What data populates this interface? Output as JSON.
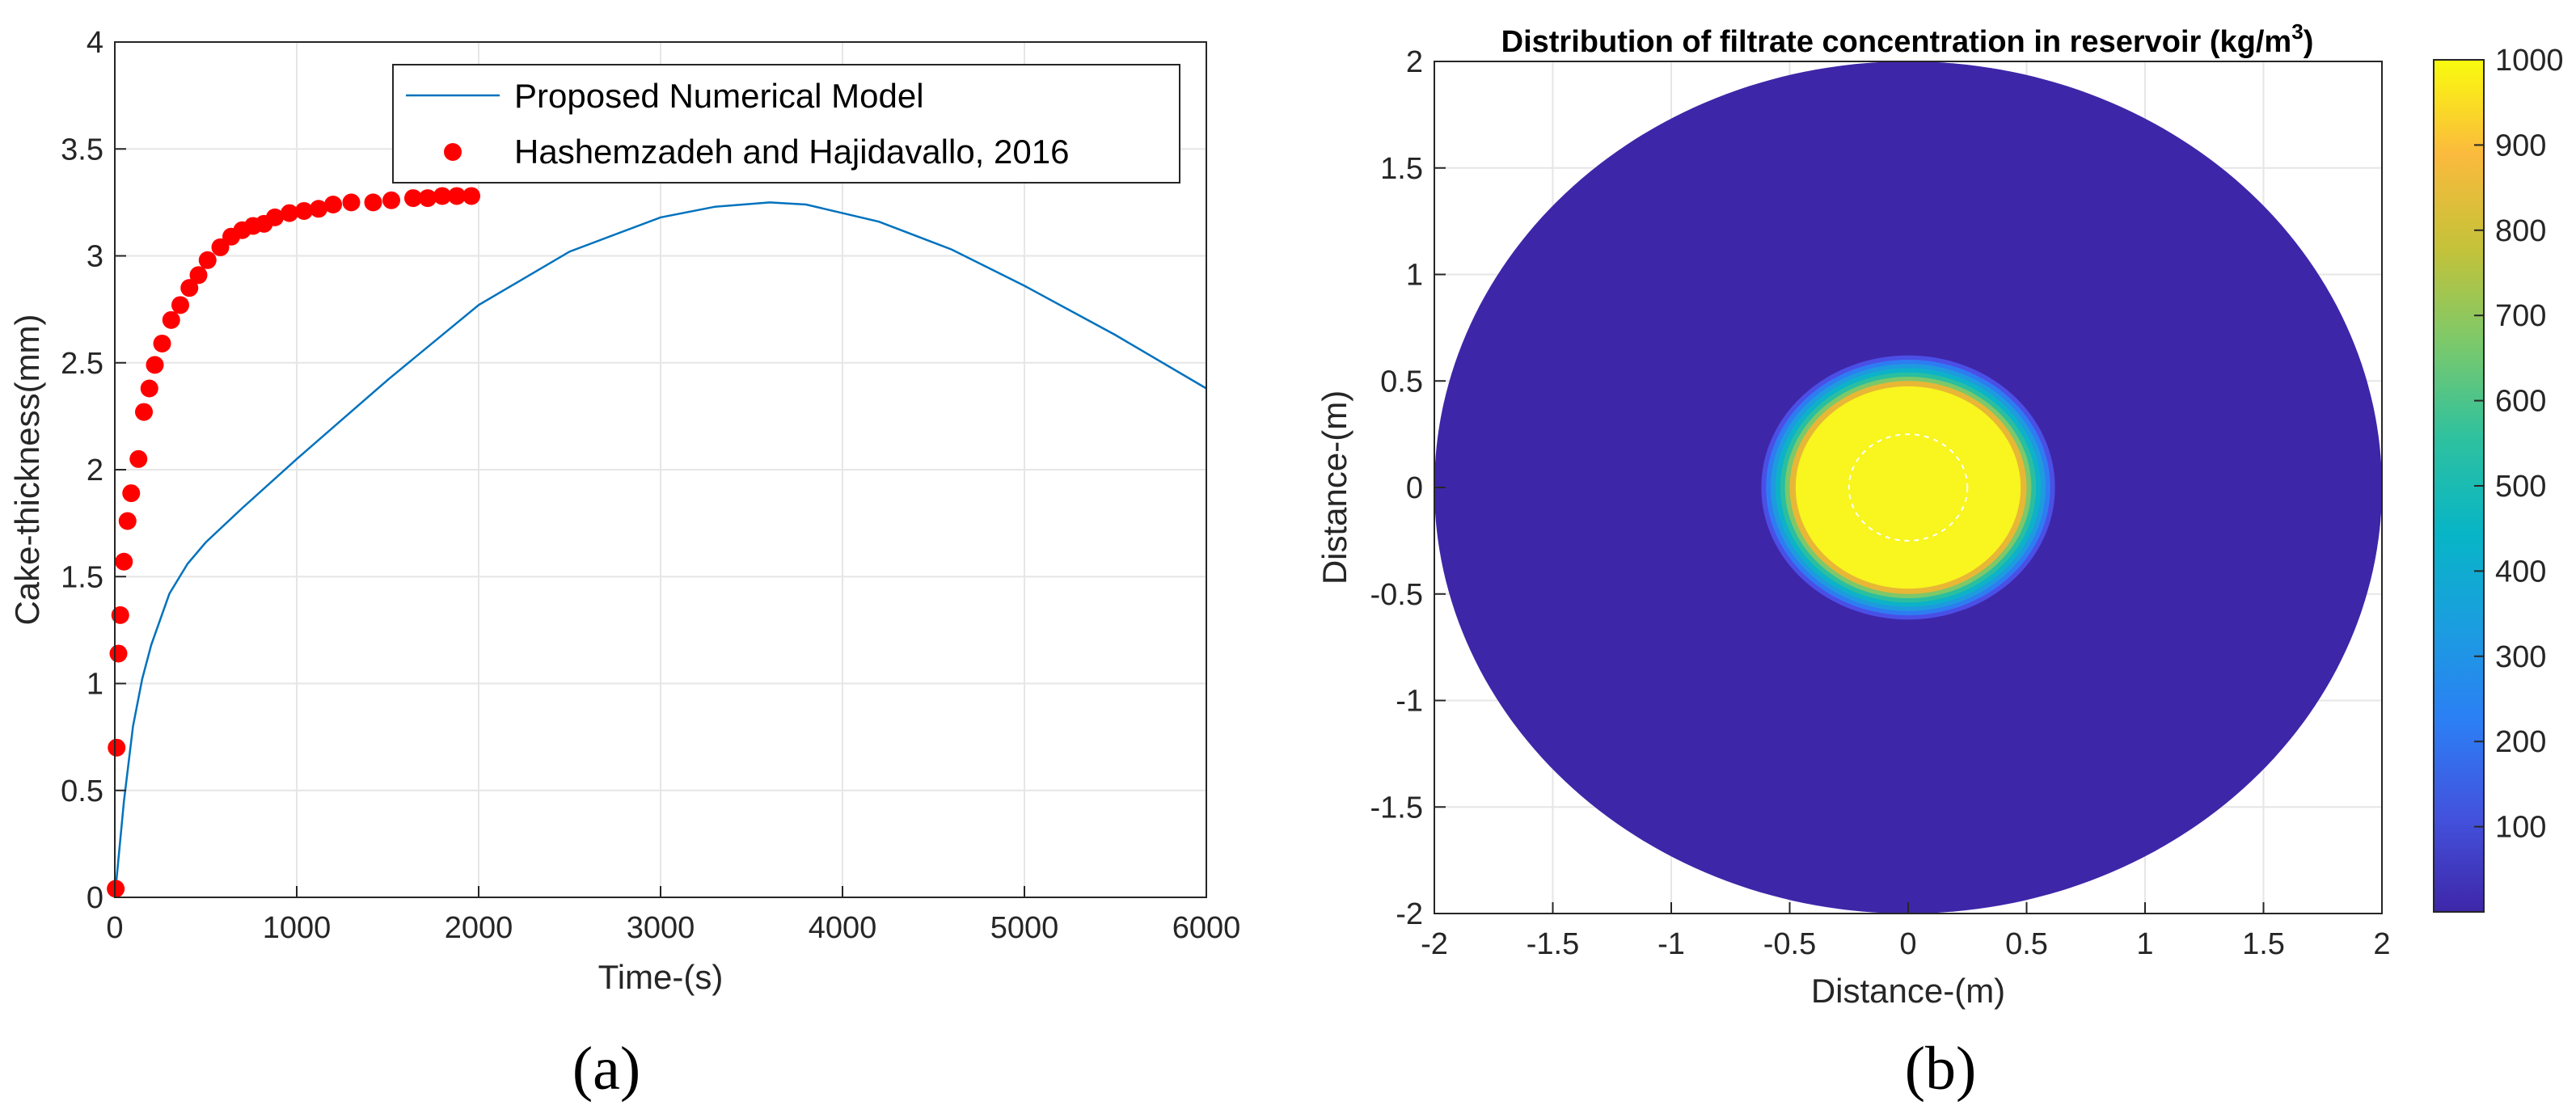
{
  "chart_data": [
    {
      "type": "line",
      "panel_caption": "(a)",
      "xlabel": "Time-(s)",
      "ylabel": "Cake-thickness(mm)",
      "xlim": [
        0,
        6000
      ],
      "ylim": [
        0,
        4
      ],
      "xticks": [
        "0",
        "1000",
        "2000",
        "3000",
        "4000",
        "5000",
        "6000"
      ],
      "yticks": [
        "0",
        "0.5",
        "1",
        "1.5",
        "2",
        "2.5",
        "3",
        "3.5",
        "4"
      ],
      "grid": true,
      "legend_position": "top-right",
      "series": [
        {
          "name": "Proposed Numerical Model",
          "style": "line",
          "color": "#0072BD",
          "x": [
            0,
            50,
            100,
            150,
            200,
            300,
            400,
            500,
            700,
            1000,
            1500,
            2000,
            2500,
            3000,
            3300,
            3600,
            3800,
            4200,
            4600,
            5000,
            5500,
            6000
          ],
          "y": [
            0,
            0.45,
            0.8,
            1.02,
            1.18,
            1.42,
            1.56,
            1.66,
            1.82,
            2.05,
            2.42,
            2.77,
            3.02,
            3.18,
            3.23,
            3.25,
            3.24,
            3.16,
            3.03,
            2.86,
            2.63,
            2.38
          ]
        },
        {
          "name": "Hashemzadeh and Hajidavallo, 2016",
          "style": "marker",
          "color": "#FF0000",
          "x": [
            5,
            10,
            20,
            30,
            50,
            70,
            90,
            130,
            160,
            190,
            220,
            260,
            310,
            360,
            410,
            460,
            510,
            580,
            640,
            700,
            760,
            820,
            880,
            960,
            1040,
            1120,
            1200,
            1300,
            1420,
            1520,
            1640,
            1720,
            1800,
            1880,
            1960
          ],
          "y": [
            0.04,
            0.7,
            1.14,
            1.32,
            1.57,
            1.76,
            1.89,
            2.05,
            2.27,
            2.38,
            2.49,
            2.59,
            2.7,
            2.77,
            2.85,
            2.91,
            2.98,
            3.04,
            3.09,
            3.12,
            3.14,
            3.15,
            3.18,
            3.2,
            3.21,
            3.22,
            3.24,
            3.25,
            3.25,
            3.26,
            3.27,
            3.27,
            3.28,
            3.28,
            3.28
          ]
        }
      ]
    },
    {
      "type": "heatmap",
      "panel_caption": "(b)",
      "title": "Distribution of filtrate concentration in reservoir (kg/m",
      "title_superscript": "3",
      "title_close": ")",
      "xlabel": "Distance-(m)",
      "ylabel": "Distance-(m)",
      "xlim": [
        -2,
        2
      ],
      "ylim": [
        -2,
        2
      ],
      "xticks": [
        "-2",
        "-1.5",
        "-1",
        "-0.5",
        "0",
        "0.5",
        "1",
        "1.5",
        "2"
      ],
      "yticks": [
        "-2",
        "-1.5",
        "-1",
        "-0.5",
        "0",
        "0.5",
        "1",
        "1.5",
        "2"
      ],
      "grid": true,
      "domain_radius_m": 2,
      "background_value": 0,
      "contours": [
        {
          "radius_m": 0.62,
          "value": 80,
          "color": "#4A4FE6"
        },
        {
          "radius_m": 0.6,
          "value": 200,
          "color": "#2E7CF2"
        },
        {
          "radius_m": 0.58,
          "value": 300,
          "color": "#1E9BDE"
        },
        {
          "radius_m": 0.56,
          "value": 450,
          "color": "#0DB2C9"
        },
        {
          "radius_m": 0.54,
          "value": 600,
          "color": "#29BFA0"
        },
        {
          "radius_m": 0.52,
          "value": 700,
          "color": "#7CC86A"
        },
        {
          "radius_m": 0.5,
          "value": 800,
          "color": "#E8B735"
        },
        {
          "radius_m": 0.475,
          "value": 1000,
          "color": "#F8F51F"
        }
      ],
      "inner_dashed_radius_m": 0.25,
      "colorbar": {
        "min": 0,
        "max": 1000,
        "ticks": [
          "100",
          "200",
          "300",
          "400",
          "500",
          "600",
          "700",
          "800",
          "900",
          "1000"
        ],
        "stops": [
          "#3E26A8",
          "#4352DD",
          "#2C7EF5",
          "#1B9DE0",
          "#07B5C6",
          "#2EC19F",
          "#7BC96B",
          "#C4C239",
          "#FBBA3D",
          "#F9FB0E"
        ]
      }
    }
  ]
}
